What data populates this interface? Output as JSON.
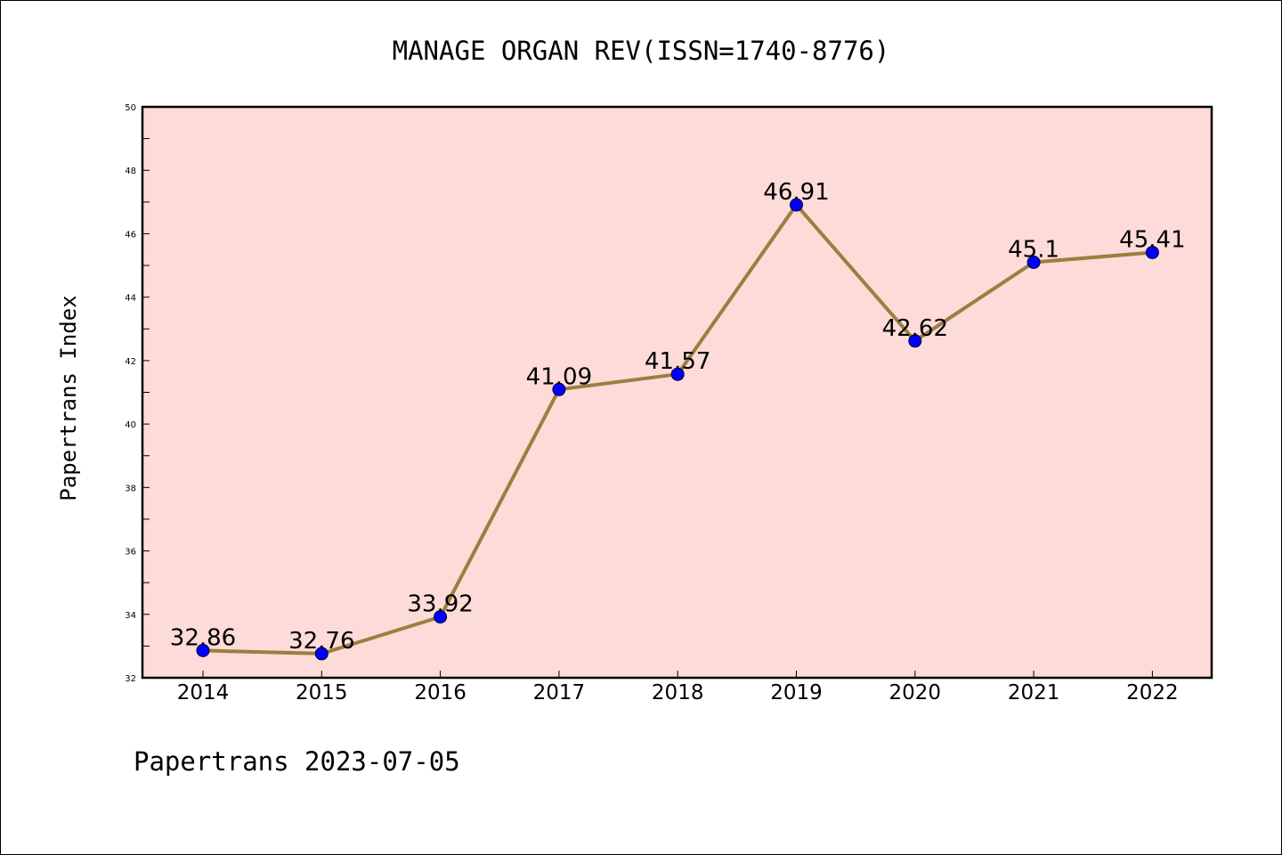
{
  "footer_text": "Papertrans 2023-07-05",
  "colors": {
    "plot_background": "#fddbd8",
    "line": "#9a7f3f",
    "marker": "#0000ff",
    "axis": "#000000"
  },
  "chart_data": {
    "type": "line",
    "title": "MANAGE ORGAN REV(ISSN=1740-8776)",
    "xlabel": "",
    "ylabel": "Papertrans Index",
    "categories": [
      "2014",
      "2015",
      "2016",
      "2017",
      "2018",
      "2019",
      "2020",
      "2021",
      "2022"
    ],
    "series": [
      {
        "values": [
          32.86,
          32.76,
          33.92,
          41.09,
          41.57,
          46.91,
          42.62,
          45.1,
          45.41
        ],
        "labels": [
          "32.86",
          "32.76",
          "33.92",
          "41.09",
          "41.57",
          "46.91",
          "42.62",
          "45.1",
          "45.41"
        ]
      }
    ],
    "ylim": [
      32,
      50
    ],
    "yticks": [
      "32",
      "34",
      "36",
      "38",
      "40",
      "42",
      "44",
      "46",
      "48",
      "50"
    ],
    "grid": false,
    "legend": "none"
  }
}
